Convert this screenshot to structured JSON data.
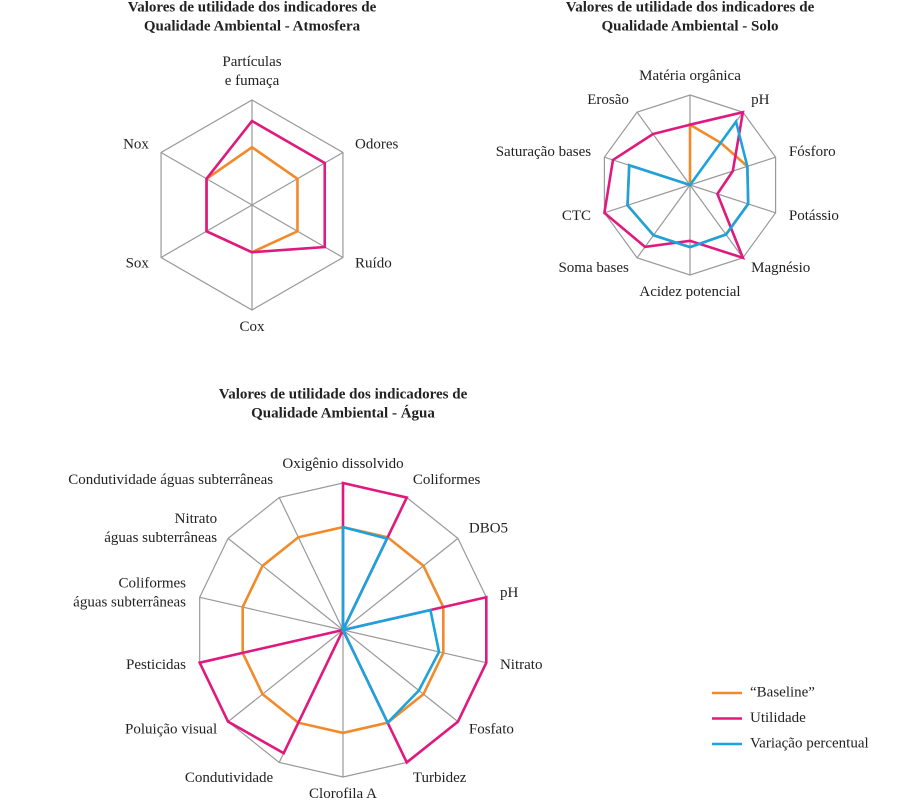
{
  "chart_data": [
    {
      "type": "radar",
      "title": "Valores de utilidade dos indicadores de\nQualidade Ambiental - Atmosfera",
      "categories": [
        "Partículas\ne fumaça",
        "Odores",
        "Ruído",
        "Cox",
        "Sox",
        "Nox"
      ],
      "ylim": [
        0,
        1
      ],
      "series": [
        {
          "color": "#f28a2a",
          "values": [
            0.55,
            0.5,
            0.5,
            0.45,
            0.5,
            0.5
          ]
        },
        {
          "color": "#e0197e",
          "values": [
            0.8,
            0.8,
            0.8,
            0.45,
            0.5,
            0.5
          ]
        }
      ]
    },
    {
      "type": "radar",
      "title": "Valores de utilidade dos indicadores de\nQualidade Ambiental - Solo",
      "categories": [
        "Matéria orgânica",
        "pH",
        "Fósforo",
        "Potássio",
        "Magnésio",
        "Acidez potencial",
        "Soma bases",
        "CTC",
        "Saturação bases",
        "Erosão"
      ],
      "ylim": [
        0,
        1
      ],
      "series": [
        {
          "color": "#f28a2a",
          "values": [
            0.67,
            0.58,
            0.67,
            0.68,
            0.68,
            0.69,
            0.69,
            0.73,
            0.71,
            0
          ]
        },
        {
          "color": "#e0197e",
          "values": [
            0.67,
            1.0,
            0.5,
            0.32,
            1.0,
            0.62,
            0.85,
            1.0,
            0.9,
            0.7
          ]
        },
        {
          "color": "#1aa3dd",
          "values": [
            0,
            0.87,
            0.67,
            0.68,
            0.68,
            0.69,
            0.69,
            0.73,
            0.71,
            0
          ]
        }
      ]
    },
    {
      "type": "radar",
      "title": "Valores de utilidade dos indicadores de\nQualidade Ambiental - Água",
      "categories": [
        "Oxigênio dissolvido",
        "Coliformes",
        "DBO5",
        "pH",
        "Nitrato",
        "Fosfato",
        "Turbidez",
        "Clorofila A",
        "Condutividade",
        "Poluição visual",
        "Pesticidas",
        "Coliformes\náguas subterrâneas",
        "Nitrato\náguas subterrâneas",
        "Condutividade águas subterrâneas"
      ],
      "ylim": [
        0,
        1
      ],
      "series": [
        {
          "color": "#f28a2a",
          "values": [
            0.7,
            0.7,
            0.7,
            0.7,
            0.7,
            0.7,
            0.7,
            0.7,
            0.7,
            0.7,
            0.7,
            0.7,
            0.7,
            0.7
          ]
        },
        {
          "color": "#e0197e",
          "values": [
            1.0,
            1.0,
            0,
            1.0,
            1.0,
            1.0,
            1.0,
            0,
            0.93,
            1.0,
            1.0,
            0,
            0,
            0
          ]
        },
        {
          "color": "#1aa3dd",
          "values": [
            0.7,
            0.69,
            0,
            0.61,
            0.67,
            0.66,
            0.7,
            0,
            0,
            0,
            0,
            0,
            0,
            0
          ]
        }
      ]
    }
  ],
  "legend": [
    {
      "name": "“Baseline”",
      "color": "#f28a2a"
    },
    {
      "name": "Utilidade",
      "color": "#e0197e"
    },
    {
      "name": "Variação percentual",
      "color": "#1aa3dd"
    }
  ]
}
